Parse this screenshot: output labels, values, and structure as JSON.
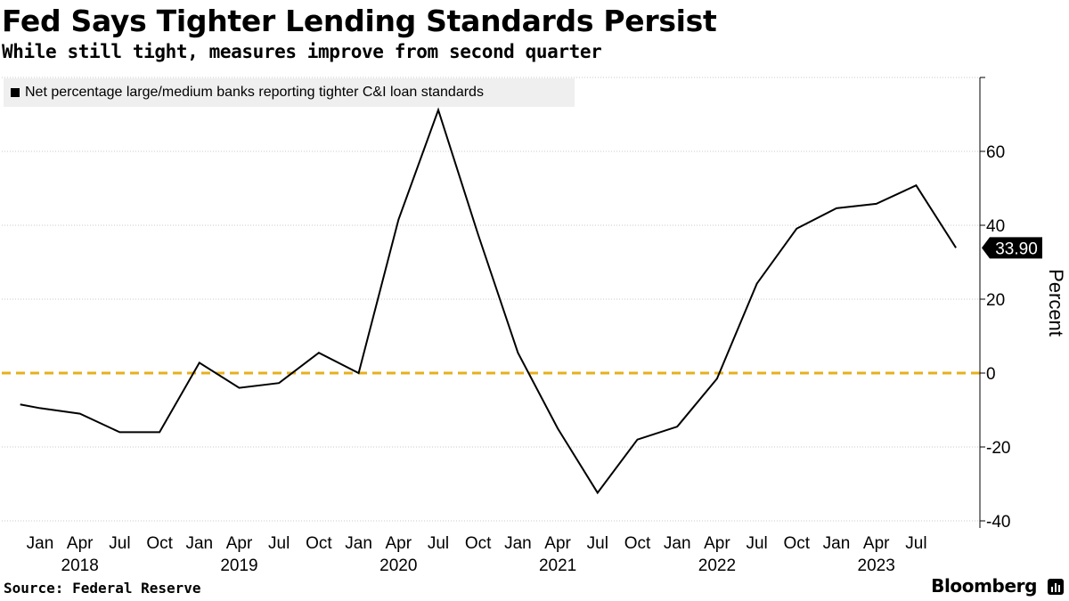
{
  "header": {
    "title": "Fed Says Tighter Lending Standards Persist",
    "subtitle": "While still tight, measures improve from second quarter"
  },
  "footer": {
    "source": "Source: Federal Reserve",
    "brand": "Bloomberg",
    "brand_icon": "bloomberg-chart-icon"
  },
  "colors": {
    "line": "#000000",
    "zero_line": "#e6b01e",
    "grid": "#c8c8c8",
    "legend_bg": "#efefef",
    "badge_bg": "#000000"
  },
  "chart_data": {
    "type": "line",
    "title": "Fed Says Tighter Lending Standards Persist",
    "subtitle": "While still tight, measures improve from second quarter",
    "ylabel": "Percent",
    "xlabel": "",
    "ylim": [
      -40,
      80
    ],
    "yticks": [
      -40,
      -20,
      0,
      20,
      40,
      60
    ],
    "yaxis_side": "right",
    "grid": true,
    "legend_position": "top-left",
    "reference_line": {
      "y": 0,
      "style": "dashed"
    },
    "x_tick_labels": [
      "Jan",
      "Apr",
      "Jul",
      "Oct",
      "Jan",
      "Apr",
      "Jul",
      "Oct",
      "Jan",
      "Apr",
      "Jul",
      "Oct",
      "Jan",
      "Apr",
      "Jul",
      "Oct",
      "Jan",
      "Apr",
      "Jul",
      "Oct",
      "Jan",
      "Apr",
      "Jul"
    ],
    "x_year_labels": [
      {
        "label": "2018",
        "at_index": 1
      },
      {
        "label": "2019",
        "at_index": 5
      },
      {
        "label": "2020",
        "at_index": 9
      },
      {
        "label": "2021",
        "at_index": 13
      },
      {
        "label": "2022",
        "at_index": 17
      },
      {
        "label": "2023",
        "at_index": 21
      }
    ],
    "last_value_label": "33.90",
    "series": [
      {
        "name": "Net percentage large/medium banks reporting tighter C&I loan standards",
        "x": [
          "2017-10",
          "2018-01",
          "2018-04",
          "2018-07",
          "2018-10",
          "2019-01",
          "2019-04",
          "2019-07",
          "2019-10",
          "2020-01",
          "2020-04",
          "2020-07",
          "2020-10",
          "2021-01",
          "2021-04",
          "2021-07",
          "2021-10",
          "2022-01",
          "2022-04",
          "2022-07",
          "2022-10",
          "2023-01",
          "2023-04",
          "2023-07",
          "2023-10"
        ],
        "x_index": [
          -0.5,
          0,
          1,
          2,
          3,
          4,
          5,
          6,
          7,
          8,
          9,
          10,
          11,
          12,
          13,
          14,
          15,
          16,
          17,
          18,
          19,
          20,
          21,
          22,
          23
        ],
        "values": [
          -8.5,
          -9.5,
          -11,
          -16,
          -16,
          2.8,
          -4,
          -2.7,
          5.5,
          0,
          41.5,
          71.2,
          37.5,
          5.5,
          -15,
          -32.4,
          -18,
          -14.5,
          -1.5,
          24.2,
          39.1,
          44.6,
          45.8,
          50.8,
          33.9
        ]
      }
    ]
  }
}
